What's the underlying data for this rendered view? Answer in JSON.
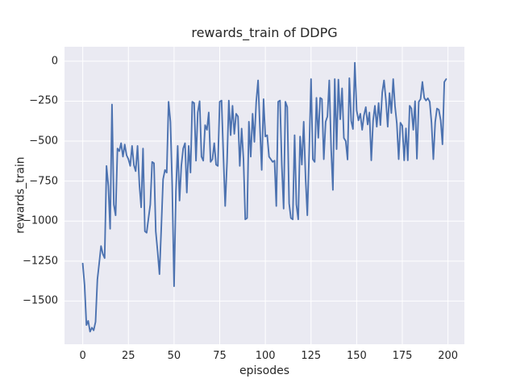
{
  "chart_data": {
    "type": "line",
    "title": "rewards_train of DDPG",
    "xlabel": "episodes",
    "ylabel": "rewards_train",
    "x_start": 0,
    "x_step": 1,
    "xlim": [
      -10,
      209
    ],
    "ylim": [
      -1770,
      90
    ],
    "xticks": [
      0,
      25,
      50,
      75,
      100,
      125,
      150,
      175,
      200
    ],
    "yticks": [
      0,
      -250,
      -500,
      -750,
      -1000,
      -1250,
      -1500
    ],
    "grid": true,
    "legend_position": "none",
    "colors": {
      "line": "#4c72b0",
      "plot_background": "#eaeaf2",
      "grid": "#ffffff",
      "figure_background": "#ffffff",
      "text": "#262626"
    },
    "values": [
      -1265,
      -1400,
      -1650,
      -1624,
      -1691,
      -1666,
      -1683,
      -1630,
      -1365,
      -1265,
      -1156,
      -1206,
      -1231,
      -655,
      -780,
      -1048,
      -271,
      -897,
      -964,
      -546,
      -563,
      -513,
      -597,
      -521,
      -588,
      -613,
      -655,
      -530,
      -650,
      -688,
      -530,
      -772,
      -914,
      -546,
      -1064,
      -1073,
      -981,
      -897,
      -630,
      -638,
      -1064,
      -1190,
      -1332,
      -1048,
      -738,
      -680,
      -697,
      -254,
      -380,
      -780,
      -1407,
      -814,
      -530,
      -872,
      -655,
      -546,
      -513,
      -822,
      -530,
      -697,
      -254,
      -262,
      -622,
      -321,
      -250,
      -597,
      -622,
      -400,
      -429,
      -321,
      -630,
      -613,
      -513,
      -647,
      -655,
      -254,
      -246,
      -580,
      -906,
      -630,
      -246,
      -463,
      -279,
      -455,
      -329,
      -346,
      -655,
      -421,
      -613,
      -989,
      -981,
      -379,
      -597,
      -329,
      -505,
      -254,
      -120,
      -404,
      -680,
      -237,
      -471,
      -463,
      -597,
      -613,
      -630,
      -622,
      -906,
      -254,
      -246,
      -647,
      -922,
      -254,
      -287,
      -889,
      -981,
      -989,
      -463,
      -897,
      -989,
      -471,
      -647,
      -379,
      -730,
      -964,
      -563,
      -112,
      -613,
      -630,
      -229,
      -479,
      -229,
      -237,
      -613,
      -379,
      -346,
      -120,
      -546,
      -805,
      -112,
      -550,
      -115,
      -363,
      -170,
      -480,
      -500,
      -615,
      -106,
      -374,
      -424,
      -10,
      -308,
      -370,
      -329,
      -429,
      -340,
      -287,
      -396,
      -321,
      -620,
      -370,
      -279,
      -410,
      -262,
      -400,
      -196,
      -120,
      -240,
      -410,
      -200,
      -325,
      -112,
      -279,
      -390,
      -613,
      -385,
      -404,
      -620,
      -420,
      -620,
      -279,
      -296,
      -429,
      -250,
      -610,
      -254,
      -237,
      -130,
      -229,
      -246,
      -232,
      -254,
      -385,
      -613,
      -380,
      -296,
      -304,
      -370,
      -520,
      -130,
      -112
    ]
  }
}
